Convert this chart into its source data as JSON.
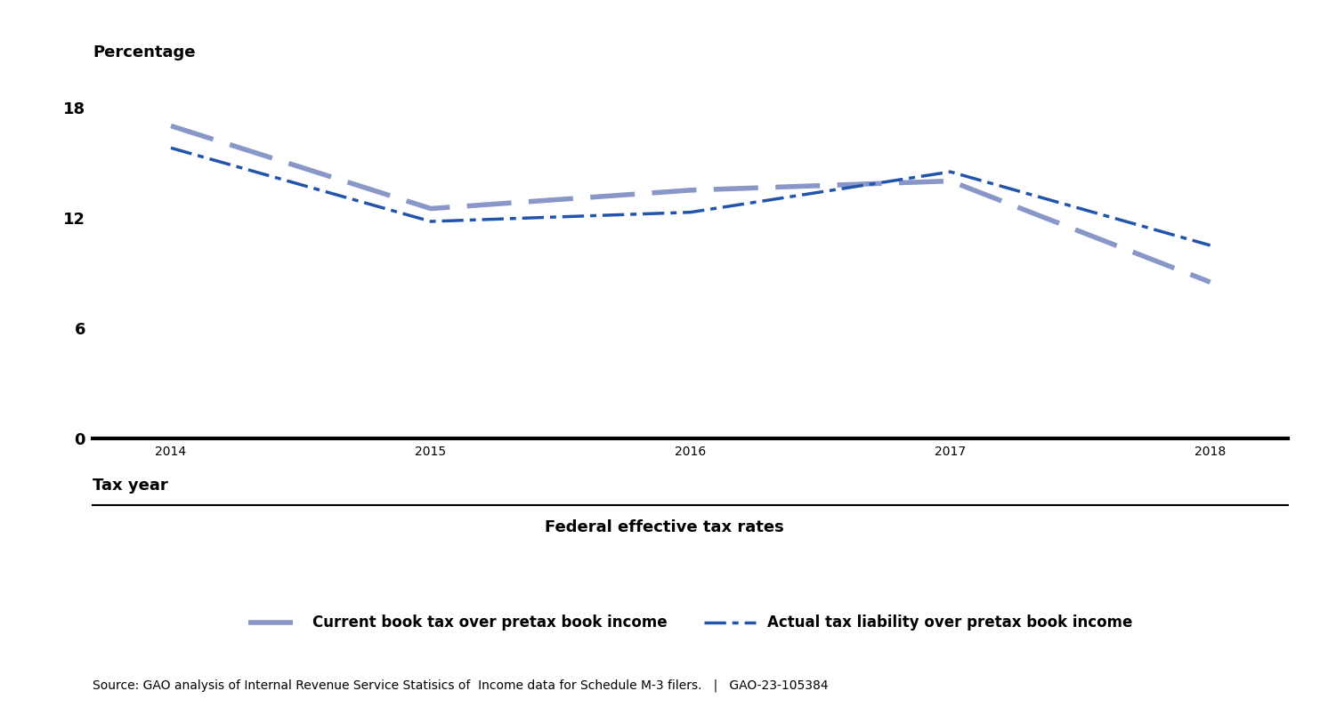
{
  "years": [
    2014,
    2015,
    2016,
    2017,
    2018
  ],
  "current_book_tax": [
    17.0,
    12.5,
    13.5,
    14.0,
    8.5
  ],
  "actual_tax_liability": [
    15.8,
    11.8,
    12.3,
    14.5,
    10.5
  ],
  "ylabel": "Percentage",
  "xlabel_main": "Tax year",
  "xlabel_sub": "Federal effective tax rates",
  "yticks": [
    0,
    6,
    12,
    18
  ],
  "ylim": [
    0,
    20
  ],
  "xlim": [
    2013.7,
    2018.3
  ],
  "line1_label": "Current book tax over pretax book income",
  "line2_label": "Actual tax liability over pretax book income",
  "line1_color": "#8896c8",
  "line2_color": "#2255aa",
  "source_text": "Source: GAO analysis of Internal Revenue Service Statisics of  Income data for Schedule M-3 filers.   |   GAO-23-105384",
  "bg_color": "#ffffff",
  "tick_label_fontsize": 13,
  "axis_label_fontsize": 13,
  "legend_fontsize": 12,
  "source_fontsize": 10
}
